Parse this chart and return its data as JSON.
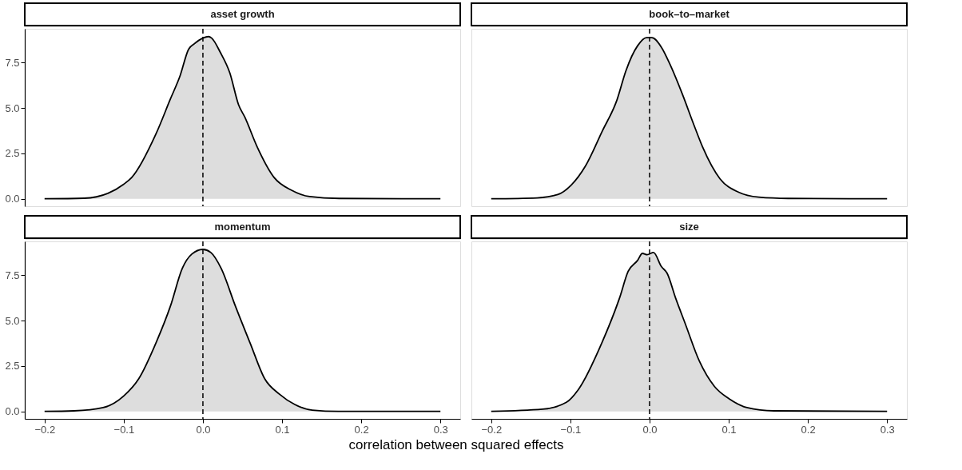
{
  "chart_data": [
    {
      "type": "area",
      "title": "asset growth",
      "xlim": [
        -0.225,
        0.325
      ],
      "ylim": [
        -0.41,
        9.36
      ],
      "tick_labels": "y",
      "grid": false,
      "yticks": [
        {
          "value": 0,
          "label": "0.0"
        },
        {
          "value": 2.5,
          "label": "2.5"
        },
        {
          "value": 5,
          "label": "5.0"
        },
        {
          "value": 7.5,
          "label": "7.5"
        }
      ],
      "ref_lines": [
        {
          "axis": "x",
          "value": 0,
          "line_style": "dashed"
        }
      ],
      "series": [
        {
          "color": "#dddddd",
          "x": [
            -0.2,
            -0.15,
            -0.12,
            -0.1,
            -0.09,
            -0.059,
            -0.041,
            -0.029,
            -0.018,
            -0.011,
            0,
            0.007,
            0.011,
            0.022,
            0.034,
            0.045,
            0.053,
            0.068,
            0.09,
            0.112,
            0.135,
            0.172,
            0.3
          ],
          "values": [
            0,
            0.03,
            0.3,
            0.8,
            1.17,
            3.6,
            5.5,
            6.75,
            8.24,
            8.53,
            8.85,
            8.93,
            8.85,
            8.06,
            6.93,
            5.18,
            4.49,
            2.91,
            1.17,
            0.47,
            0.12,
            0.02,
            0
          ]
        }
      ]
    },
    {
      "type": "area",
      "title": "book–to–market",
      "xlim": [
        -0.225,
        0.325
      ],
      "ylim": [
        -0.41,
        9.36
      ],
      "tick_labels": false,
      "ref_lines": [
        {
          "axis": "x",
          "value": 0,
          "line_style": "dashed"
        }
      ],
      "series": [
        {
          "color": "#dddddd",
          "x": [
            -0.2,
            -0.142,
            -0.116,
            -0.099,
            -0.081,
            -0.06,
            -0.041,
            -0.03,
            -0.015,
            -0.004,
            0.003,
            0.015,
            0.026,
            0.041,
            0.056,
            0.067,
            0.089,
            0.112,
            0.138,
            0.175,
            0.3
          ],
          "values": [
            0,
            0.05,
            0.23,
            0.75,
            1.8,
            3.7,
            5.46,
            7.03,
            8.43,
            8.87,
            8.87,
            8.34,
            7.38,
            5.81,
            4.07,
            2.85,
            1.1,
            0.37,
            0.09,
            0.02,
            0
          ]
        }
      ]
    },
    {
      "type": "area",
      "title": "momentum",
      "xlabel": "correlation between squared effects",
      "xlim": [
        -0.225,
        0.325
      ],
      "ylim": [
        -0.41,
        9.36
      ],
      "grid": false,
      "xticks": [
        {
          "value": -0.2,
          "label": "−0.2"
        },
        {
          "value": -0.1,
          "label": "−0.1"
        },
        {
          "value": 0,
          "label": "0.0"
        },
        {
          "value": 0.1,
          "label": "0.1"
        },
        {
          "value": 0.2,
          "label": "0.2"
        },
        {
          "value": 0.3,
          "label": "0.3"
        }
      ],
      "yticks": [
        {
          "value": 0,
          "label": "0.0"
        },
        {
          "value": 2.5,
          "label": "2.5"
        },
        {
          "value": 5,
          "label": "5.0"
        },
        {
          "value": 7.5,
          "label": "7.5"
        }
      ],
      "ref_lines": [
        {
          "axis": "x",
          "value": 0,
          "line_style": "dashed"
        }
      ],
      "series": [
        {
          "color": "#dddddd",
          "x": [
            -0.2,
            -0.163,
            -0.126,
            -0.1,
            -0.081,
            -0.059,
            -0.041,
            -0.026,
            -0.014,
            0,
            0.01,
            0.023,
            0.041,
            0.06,
            0.078,
            0.097,
            0.116,
            0.138,
            0.171,
            0.3
          ],
          "values": [
            0,
            0.03,
            0.21,
            0.85,
            1.8,
            3.8,
            5.8,
            7.88,
            8.66,
            8.92,
            8.75,
            7.88,
            5.8,
            3.72,
            1.8,
            0.94,
            0.38,
            0.07,
            0,
            0
          ]
        }
      ]
    },
    {
      "type": "area",
      "title": "size",
      "xlim": [
        -0.225,
        0.325
      ],
      "ylim": [
        -0.41,
        9.36
      ],
      "tick_labels": "x",
      "grid": false,
      "xticks": [
        {
          "value": -0.2,
          "label": "−0.2"
        },
        {
          "value": -0.1,
          "label": "−0.1"
        },
        {
          "value": 0,
          "label": "0.0"
        },
        {
          "value": 0.1,
          "label": "0.1"
        },
        {
          "value": 0.2,
          "label": "0.2"
        },
        {
          "value": 0.3,
          "label": "0.3"
        }
      ],
      "ref_lines": [
        {
          "axis": "x",
          "value": 0,
          "line_style": "dashed"
        }
      ],
      "series": [
        {
          "color": "#dddddd",
          "x": [
            -0.2,
            -0.135,
            -0.105,
            -0.09,
            -0.06,
            -0.038,
            -0.027,
            -0.015,
            -0.009,
            -0.003,
            0.005,
            0.015,
            0.022,
            0.033,
            0.045,
            0.063,
            0.082,
            0.101,
            0.123,
            0.157,
            0.3
          ],
          "values": [
            0,
            0.12,
            0.5,
            1.2,
            3.8,
            6.23,
            7.71,
            8.32,
            8.7,
            8.63,
            8.75,
            7.97,
            7.62,
            6.23,
            4.84,
            2.76,
            1.37,
            0.68,
            0.21,
            0.03,
            0
          ]
        }
      ]
    }
  ]
}
